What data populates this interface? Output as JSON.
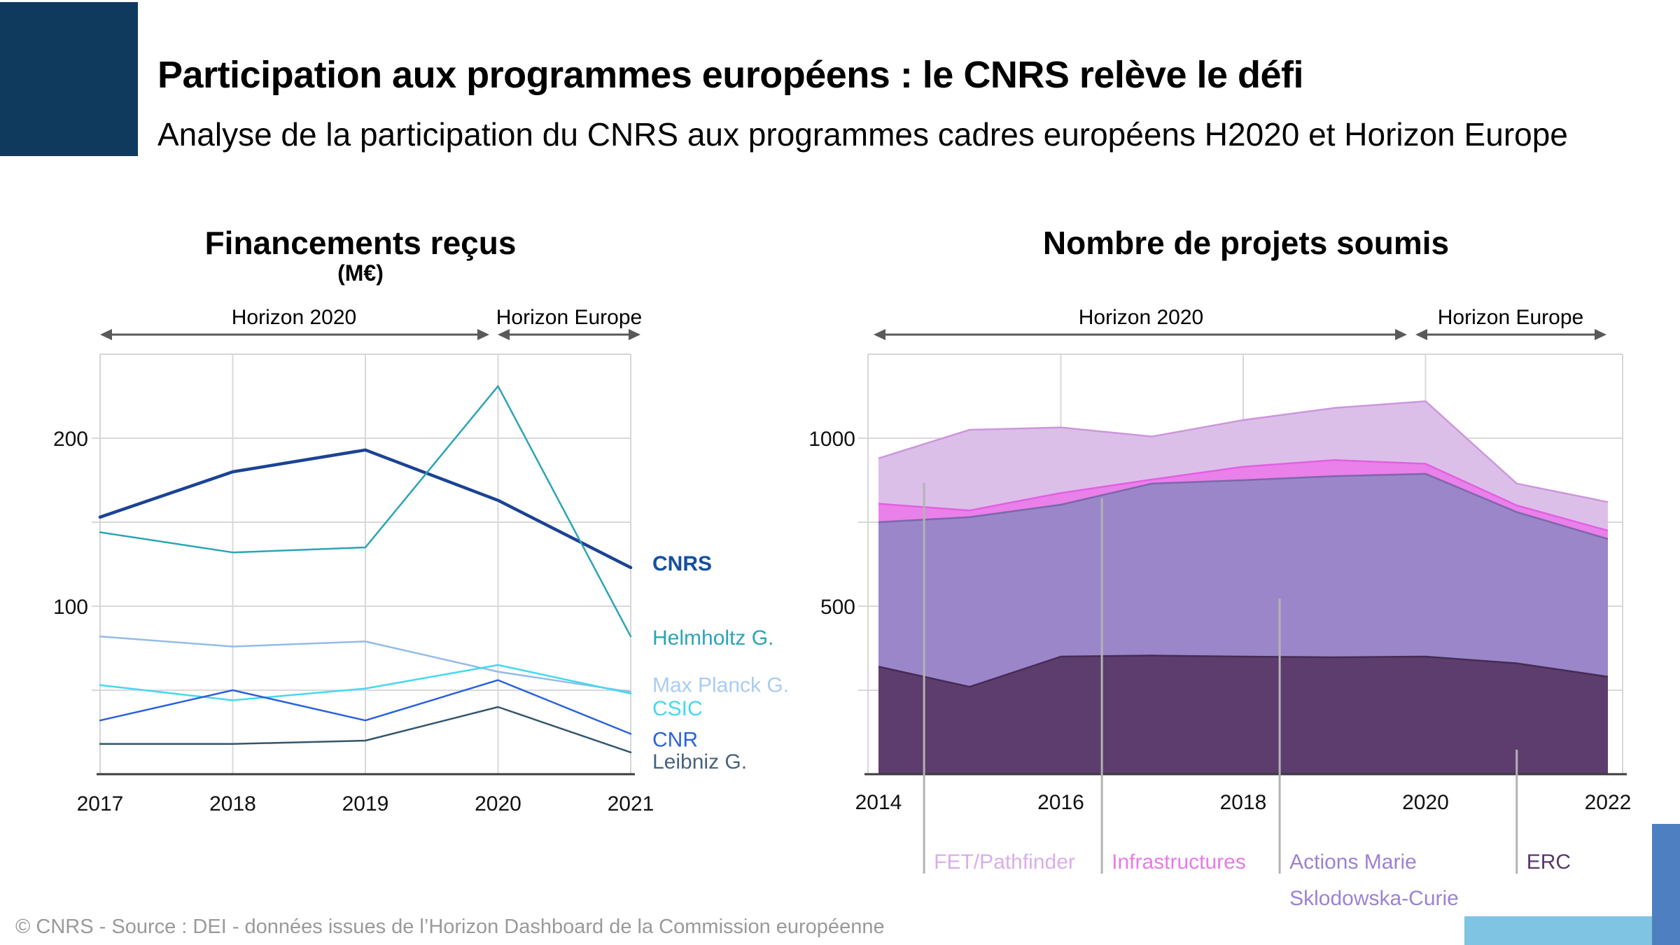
{
  "header": {
    "title": "Participation aux programmes européens : le CNRS relève le défi",
    "subtitle": "Analyse de la participation du CNRS aux programmes cadres européens H2020 et Horizon Europe"
  },
  "footer": {
    "credit": "© CNRS - Source : DEI - données issues de l’Horizon Dashboard de la Commission européenne"
  },
  "accent_colors": {
    "navy_block": "#10395e",
    "decor_light_blue": "#7fc4e2",
    "decor_steel_blue": "#4e7fc0"
  },
  "chart_data": [
    {
      "type": "line",
      "title": "Financements reçus",
      "ylabel": "(M€)",
      "x": [
        2017,
        2018,
        2019,
        2020,
        2021
      ],
      "x_tick_labels": [
        "2017",
        "2018",
        "2019",
        "2020",
        "2021"
      ],
      "ylim": [
        0,
        250
      ],
      "grid_step": 50,
      "grid": true,
      "legend_position": "right",
      "y_ticks": [
        {
          "label": "200",
          "value": 200
        },
        {
          "label": "100",
          "value": 100
        }
      ],
      "era_annotations": [
        {
          "label": "Horizon 2020",
          "from": 2017,
          "to": 2020
        },
        {
          "label": "Horizon Europe",
          "from": 2020,
          "to": 2021
        }
      ],
      "series": [
        {
          "name": "CNRS",
          "color": "#1b4394",
          "label_color": "#164f9e",
          "bold": true,
          "width": 4.5,
          "values": [
            153,
            180,
            193,
            163,
            123
          ]
        },
        {
          "name": "Helmholtz G.",
          "color": "#2ca4b6",
          "label_color": "#2ca4b6",
          "bold": false,
          "width": 2.5,
          "values": [
            144,
            132,
            135,
            231,
            82
          ]
        },
        {
          "name": "Max Planck G.",
          "color": "#93bce9",
          "label_color": "#a9cdf2",
          "bold": false,
          "width": 2.5,
          "values": [
            82,
            76,
            79,
            61,
            49
          ]
        },
        {
          "name": "CSIC",
          "color": "#45d8f0",
          "label_color": "#45d8f0",
          "bold": false,
          "width": 2.5,
          "values": [
            53,
            44,
            51,
            65,
            48
          ]
        },
        {
          "name": "CNR",
          "color": "#2b62d9",
          "label_color": "#2b62d9",
          "bold": false,
          "width": 2.5,
          "values": [
            32,
            50,
            32,
            56,
            24
          ]
        },
        {
          "name": "Leibniz G.",
          "color": "#33566e",
          "label_color": "#47637f",
          "bold": false,
          "width": 2.5,
          "values": [
            18,
            18,
            20,
            40,
            13
          ]
        }
      ]
    },
    {
      "type": "area",
      "stacked": true,
      "title": "Nombre de projets soumis",
      "x": [
        2014,
        2015,
        2016,
        2017,
        2018,
        2019,
        2020,
        2021,
        2022
      ],
      "x_tick_labels": [
        "2014",
        "2016",
        "2018",
        "2020",
        "2022"
      ],
      "x_tick_values": [
        2014,
        2016,
        2018,
        2020,
        2022
      ],
      "ylim": [
        0,
        1250
      ],
      "grid_step": 250,
      "grid": true,
      "y_ticks": [
        {
          "label": "1000",
          "value": 1000
        },
        {
          "label": "500",
          "value": 500
        }
      ],
      "era_annotations": [
        {
          "label": "Horizon 2020",
          "from": 2014,
          "to": 2020
        },
        {
          "label": "Horizon Europe",
          "from": 2020,
          "to": 2022
        }
      ],
      "series": [
        {
          "name": "ERC",
          "fill": "#5d3d6d",
          "edge": "#462c54",
          "values": [
            320,
            260,
            350,
            353,
            350,
            348,
            350,
            330,
            290
          ]
        },
        {
          "name": "Actions Marie Sklodowska-Curie",
          "fill": "#9a86c9",
          "edge": "#7b68ab",
          "values": [
            430,
            505,
            452,
            512,
            525,
            539,
            544,
            450,
            410
          ]
        },
        {
          "name": "Infrastructures",
          "fill": "#ea80ea",
          "edge": "#e161e1",
          "values": [
            55,
            20,
            35,
            12,
            40,
            48,
            30,
            20,
            25
          ]
        },
        {
          "name": "FET/Pathfinder",
          "fill": "#dcbfe9",
          "edge": "#cd96dc",
          "values": [
            135,
            240,
            195,
            128,
            139,
            155,
            186,
            65,
            85
          ]
        }
      ],
      "annotations": [
        {
          "lines": [
            "FET/Pathfinder"
          ],
          "color": "#d9aee8",
          "year": 2014.5,
          "pointer_top": 867
        },
        {
          "lines": [
            "Infrastructures"
          ],
          "color": "#e87ae8",
          "year": 2016.45,
          "pointer_top": 821
        },
        {
          "lines": [
            "Actions Marie",
            "Sklodowska-Curie"
          ],
          "color": "#9b82d4",
          "year": 2018.4,
          "pointer_top": 523
        },
        {
          "lines": [
            "ERC"
          ],
          "color": "#5b3769",
          "year": 2021.0,
          "pointer_top": 73
        }
      ]
    }
  ]
}
